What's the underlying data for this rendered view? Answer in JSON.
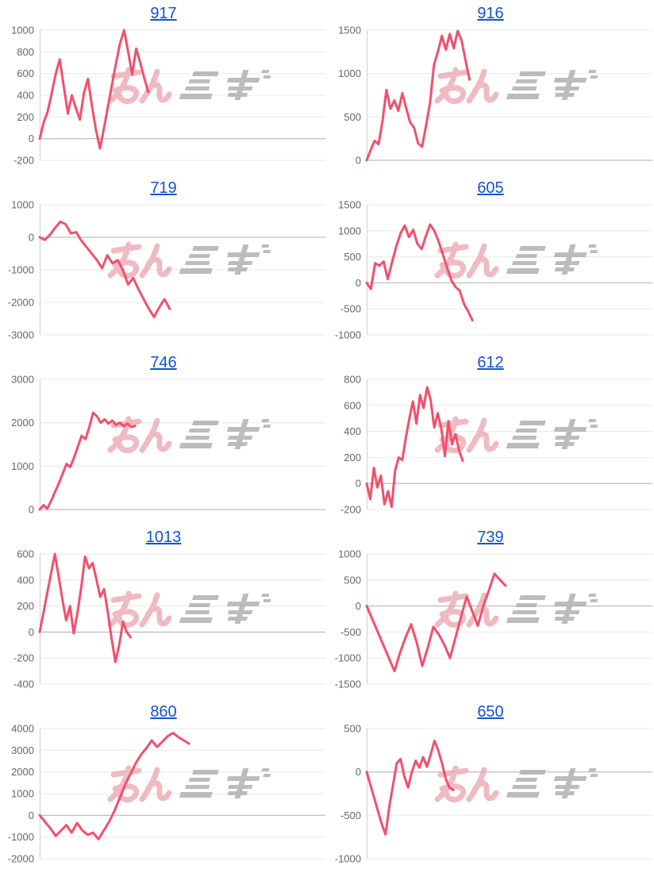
{
  "theme": {
    "background": "#ffffff",
    "title_color": "#1155CC",
    "line_color": "#F2506B",
    "tick_color": "#666666",
    "grid_color": "#E8E8E8",
    "zero_line_color": "#ADADAD",
    "axis_color": "#D0D0D0",
    "watermark_pink": "#ECA9B2",
    "watermark_gray": "#ACACAC"
  },
  "watermark": {
    "text_pink": "みん",
    "text_gray": "レポ",
    "description": "pink+gray stylized site logo watermark behind each chart line"
  },
  "chart_data": [
    {
      "type": "line",
      "title": "917",
      "xlabel": "",
      "ylabel": "",
      "ticks": [
        1000,
        800,
        600,
        400,
        200,
        0,
        -200
      ],
      "ylim": [
        -200,
        1000
      ],
      "x_extent": 0.38,
      "grid": true,
      "legend": false,
      "values": [
        0,
        150,
        250,
        420,
        600,
        730,
        480,
        230,
        400,
        280,
        175,
        420,
        550,
        300,
        80,
        -90,
        100,
        300,
        500,
        700,
        880,
        1000,
        800,
        590,
        830,
        700,
        560,
        430
      ]
    },
    {
      "type": "line",
      "title": "916",
      "xlabel": "",
      "ylabel": "",
      "ticks": [
        1500,
        1000,
        500,
        0
      ],
      "ylim": [
        0,
        1500
      ],
      "x_extent": 0.36,
      "grid": true,
      "legend": false,
      "values": [
        0,
        120,
        225,
        185,
        450,
        810,
        594,
        690,
        570,
        774,
        600,
        435,
        375,
        195,
        156,
        400,
        660,
        1095,
        1250,
        1434,
        1275,
        1455,
        1290,
        1490,
        1380,
        1150,
        930
      ]
    },
    {
      "type": "line",
      "title": "719",
      "xlabel": "",
      "ylabel": "",
      "ticks": [
        1000,
        0,
        -1000,
        -2000,
        -3000
      ],
      "ylim": [
        -3000,
        1000
      ],
      "x_extent": 0.455,
      "grid": true,
      "legend": false,
      "values": [
        0,
        -80,
        80,
        300,
        480,
        400,
        120,
        160,
        -100,
        -300,
        -500,
        -700,
        -950,
        -550,
        -800,
        -700,
        -1000,
        -1450,
        -1250,
        -1600,
        -1900,
        -2200,
        -2450,
        -2150,
        -1900,
        -2200
      ]
    },
    {
      "type": "line",
      "title": "605",
      "xlabel": "",
      "ylabel": "",
      "ticks": [
        1500,
        1000,
        500,
        0,
        -500,
        -1000
      ],
      "ylim": [
        -1000,
        1500
      ],
      "x_extent": 0.37,
      "grid": true,
      "legend": false,
      "values": [
        0,
        -120,
        380,
        330,
        410,
        70,
        400,
        700,
        950,
        1100,
        880,
        1020,
        750,
        650,
        900,
        1120,
        1000,
        800,
        550,
        300,
        50,
        -80,
        -150,
        -400,
        -550,
        -720
      ]
    },
    {
      "type": "line",
      "title": "746",
      "xlabel": "",
      "ylabel": "",
      "ticks": [
        3000,
        2000,
        1000,
        0
      ],
      "ylim": [
        0,
        3000
      ],
      "x_extent": 0.334,
      "grid": true,
      "legend": false,
      "values": [
        0,
        100,
        20,
        200,
        400,
        600,
        820,
        1050,
        980,
        1200,
        1450,
        1700,
        1620,
        1900,
        2230,
        2150,
        2000,
        2080,
        1980,
        2050,
        1950,
        2000,
        1920,
        1980,
        1900,
        1930
      ]
    },
    {
      "type": "line",
      "title": "612",
      "xlabel": "",
      "ylabel": "",
      "ticks": [
        800,
        600,
        400,
        200,
        0,
        -200
      ],
      "ylim": [
        -200,
        800
      ],
      "x_extent": 0.336,
      "grid": true,
      "legend": false,
      "values": [
        0,
        -120,
        120,
        -30,
        60,
        -160,
        -60,
        -180,
        100,
        200,
        180,
        350,
        500,
        630,
        460,
        680,
        580,
        740,
        640,
        430,
        540,
        420,
        210,
        480,
        300,
        380,
        250,
        175
      ]
    },
    {
      "type": "line",
      "title": "1013",
      "xlabel": "",
      "ylabel": "",
      "ticks": [
        600,
        400,
        200,
        0,
        -200,
        -400
      ],
      "ylim": [
        -400,
        600
      ],
      "x_extent": 0.318,
      "grid": true,
      "legend": false,
      "values": [
        0,
        150,
        300,
        450,
        600,
        430,
        250,
        90,
        200,
        -10,
        150,
        350,
        580,
        490,
        530,
        400,
        270,
        330,
        150,
        -50,
        -230,
        -100,
        80,
        0,
        -40
      ]
    },
    {
      "type": "line",
      "title": "739",
      "xlabel": "",
      "ylabel": "",
      "ticks": [
        1000,
        500,
        0,
        -500,
        -1000,
        -1500
      ],
      "ylim": [
        -1500,
        1000
      ],
      "x_extent": 0.486,
      "grid": true,
      "legend": false,
      "values": [
        0,
        -250,
        -500,
        -750,
        -1000,
        -1250,
        -900,
        -600,
        -350,
        -700,
        -1150,
        -800,
        -400,
        -550,
        -750,
        -1000,
        -600,
        -200,
        180,
        -100,
        -380,
        0,
        300,
        620,
        500,
        390
      ]
    },
    {
      "type": "line",
      "title": "860",
      "xlabel": "",
      "ylabel": "",
      "ticks": [
        4000,
        3000,
        2000,
        1000,
        0,
        -1000,
        -2000
      ],
      "ylim": [
        -2000,
        4000
      ],
      "x_extent": 0.523,
      "grid": true,
      "legend": false,
      "values": [
        0,
        -300,
        -600,
        -950,
        -700,
        -450,
        -800,
        -350,
        -700,
        -900,
        -800,
        -1100,
        -700,
        -300,
        200,
        800,
        1400,
        1900,
        2400,
        2800,
        3100,
        3450,
        3150,
        3400,
        3650,
        3800,
        3600,
        3450,
        3300
      ]
    },
    {
      "type": "line",
      "title": "650",
      "xlabel": "",
      "ylabel": "",
      "ticks": [
        500,
        0,
        -500,
        -1000
      ],
      "ylim": [
        -1000,
        500
      ],
      "x_extent": 0.303,
      "grid": true,
      "legend": false,
      "values": [
        0,
        -150,
        -300,
        -450,
        -600,
        -720,
        -400,
        -150,
        100,
        150,
        -50,
        -180,
        0,
        130,
        50,
        170,
        60,
        200,
        360,
        250,
        100,
        -80,
        -180,
        -210
      ]
    }
  ]
}
